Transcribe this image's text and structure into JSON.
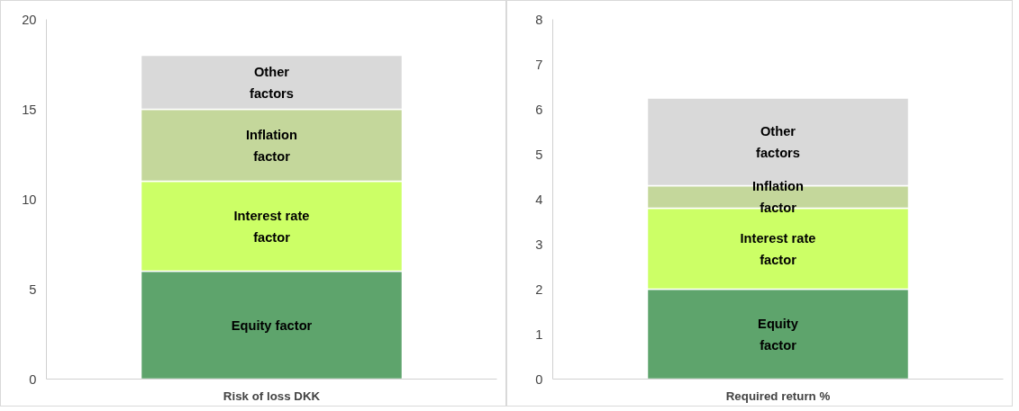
{
  "chart_data": [
    {
      "type": "bar",
      "stacked": true,
      "categories": [
        "Risk of loss DKK"
      ],
      "ylim": [
        0,
        20
      ],
      "yticks": [
        0,
        5,
        10,
        15,
        20
      ],
      "grid": false,
      "legend": false,
      "series": [
        {
          "name": "Equity factor",
          "color": "#5ea46c",
          "values": [
            6
          ]
        },
        {
          "name": "Interest rate\nfactor",
          "color": "#ccff66",
          "values": [
            5
          ]
        },
        {
          "name": "Inflation\nfactor",
          "color": "#c4d79b",
          "values": [
            4
          ]
        },
        {
          "name": "Other\nfactors",
          "color": "#d9d9d9",
          "values": [
            3
          ]
        }
      ]
    },
    {
      "type": "bar",
      "stacked": true,
      "categories": [
        "Required return %"
      ],
      "ylim": [
        0,
        8
      ],
      "yticks": [
        0,
        1,
        2,
        3,
        4,
        5,
        6,
        7,
        8
      ],
      "grid": false,
      "legend": false,
      "series": [
        {
          "name": "Equity\nfactor",
          "color": "#5ea46c",
          "values": [
            2
          ]
        },
        {
          "name": "Interest rate\nfactor",
          "color": "#ccff66",
          "values": [
            1.8
          ]
        },
        {
          "name": "Inflation\nfactor",
          "color": "#c4d79b",
          "values": [
            0.5
          ]
        },
        {
          "name": "Other\nfactors",
          "color": "#d9d9d9",
          "values": [
            1.95
          ]
        }
      ]
    }
  ]
}
